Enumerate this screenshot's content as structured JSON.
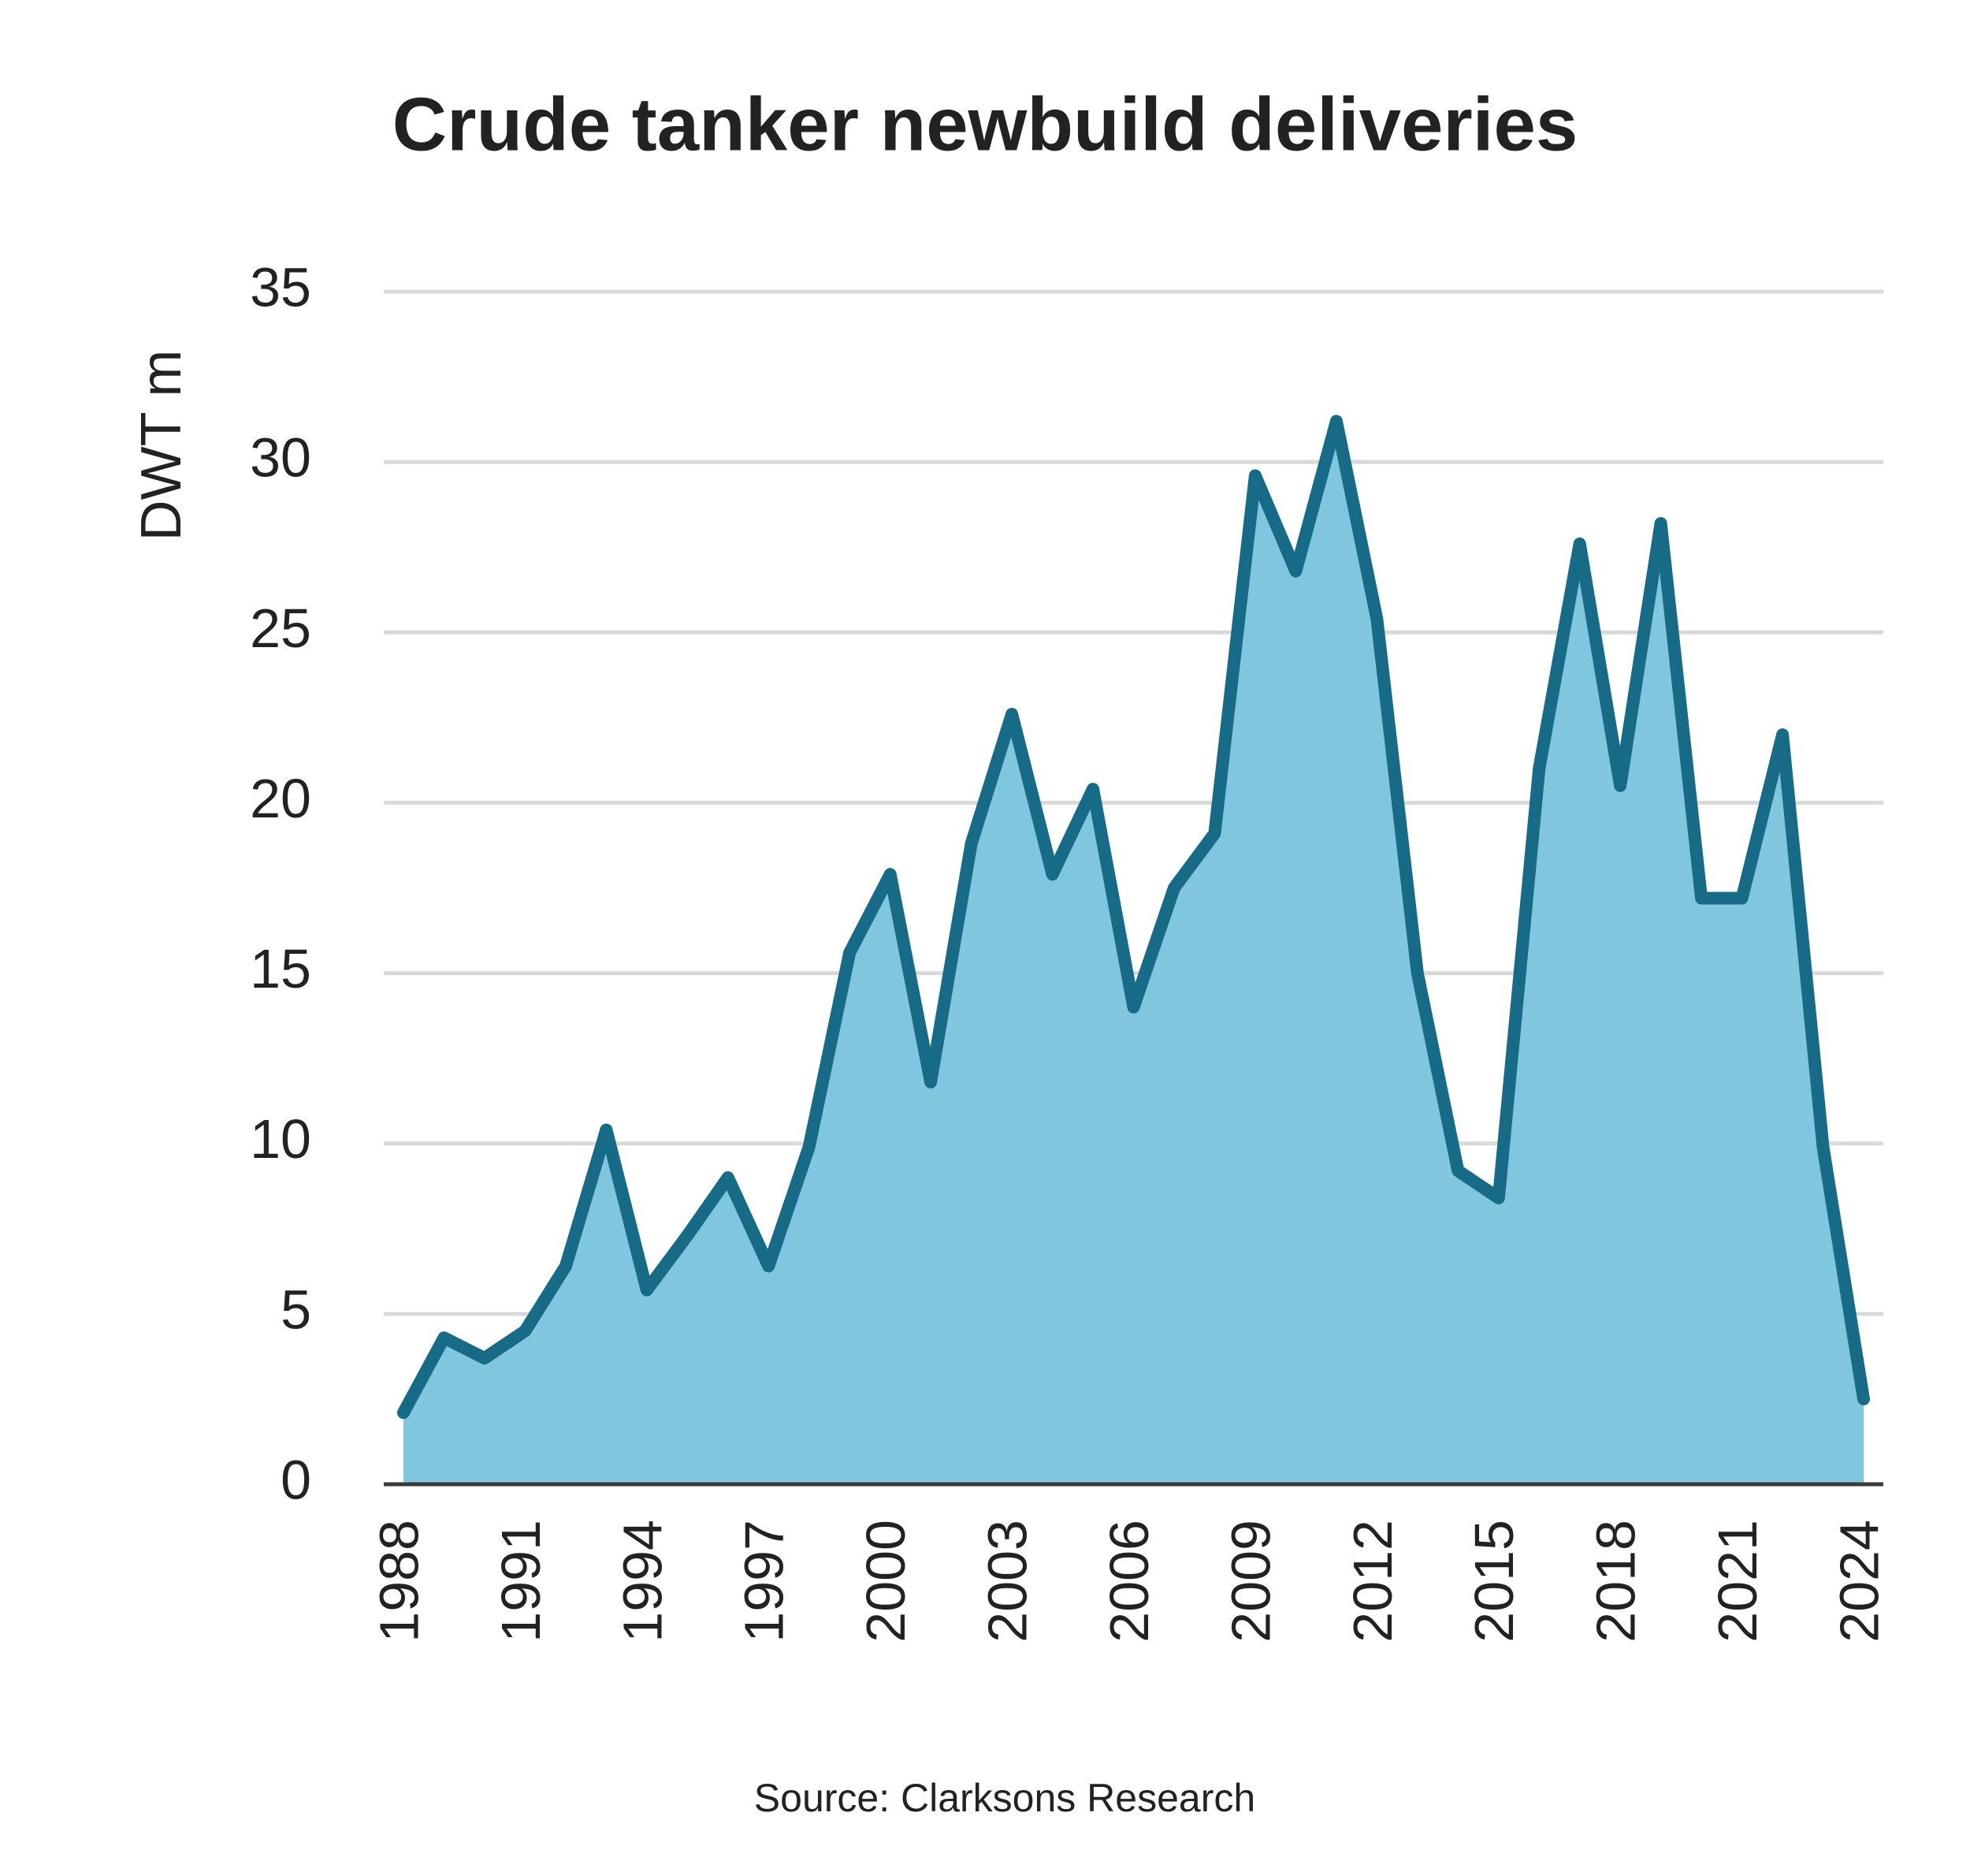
{
  "chart_data": {
    "type": "area",
    "title": "Crude tanker newbuild deliveries",
    "y_label": "DWT m",
    "source": "Source: Clarksons Research",
    "x": [
      1988,
      1989,
      1990,
      1991,
      1992,
      1993,
      1994,
      1995,
      1996,
      1997,
      1998,
      1999,
      2000,
      2001,
      2002,
      2003,
      2004,
      2005,
      2006,
      2007,
      2008,
      2009,
      2010,
      2011,
      2012,
      2013,
      2014,
      2015,
      2016,
      2017,
      2018,
      2019,
      2020,
      2021,
      2022,
      2023,
      2024
    ],
    "series": [
      {
        "color": "#176b87",
        "fill": "#80c6df",
        "values": [
          2.1,
          4.3,
          3.7,
          4.5,
          6.4,
          10.4,
          5.7,
          7.3,
          9.0,
          6.4,
          9.9,
          15.6,
          17.9,
          11.8,
          18.8,
          22.6,
          17.9,
          20.4,
          14.0,
          17.5,
          19.1,
          29.6,
          26.8,
          31.2,
          25.4,
          15.0,
          9.2,
          8.4,
          21.0,
          27.6,
          20.5,
          28.2,
          17.2,
          17.2,
          22.0,
          9.9,
          2.5
        ]
      }
    ],
    "xlim": [
      1988,
      2024
    ],
    "xticks": [
      1988,
      1991,
      1994,
      1997,
      2000,
      2003,
      2006,
      2009,
      2012,
      2015,
      2018,
      2021,
      2024
    ],
    "ylim": [
      0,
      35
    ],
    "yticks": [
      0,
      5,
      10,
      15,
      20,
      25,
      30,
      35
    ],
    "grid": true
  }
}
